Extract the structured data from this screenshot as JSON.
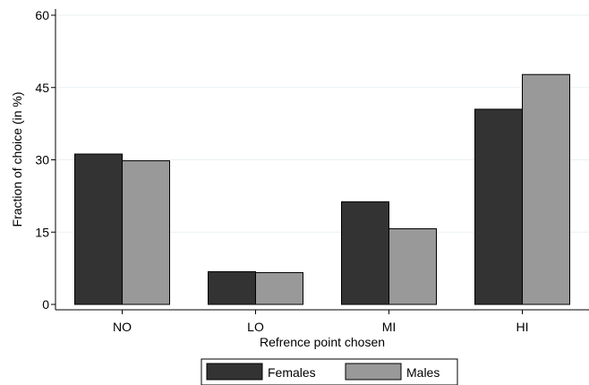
{
  "chart_data": {
    "type": "bar",
    "categories": [
      "NO",
      "LO",
      "MI",
      "HI"
    ],
    "series": [
      {
        "name": "Females",
        "values": [
          31.2,
          6.8,
          21.3,
          40.5
        ],
        "color": "#333333"
      },
      {
        "name": "Males",
        "values": [
          29.8,
          6.6,
          15.7,
          47.7
        ],
        "color": "#999999"
      }
    ],
    "xlabel": "Refrence point chosen",
    "ylabel": "Fraction of choice (in %)",
    "ylim": [
      0,
      60
    ],
    "yticks": [
      0,
      15,
      30,
      45,
      60
    ],
    "grid": true,
    "legend_position": "bottom"
  }
}
